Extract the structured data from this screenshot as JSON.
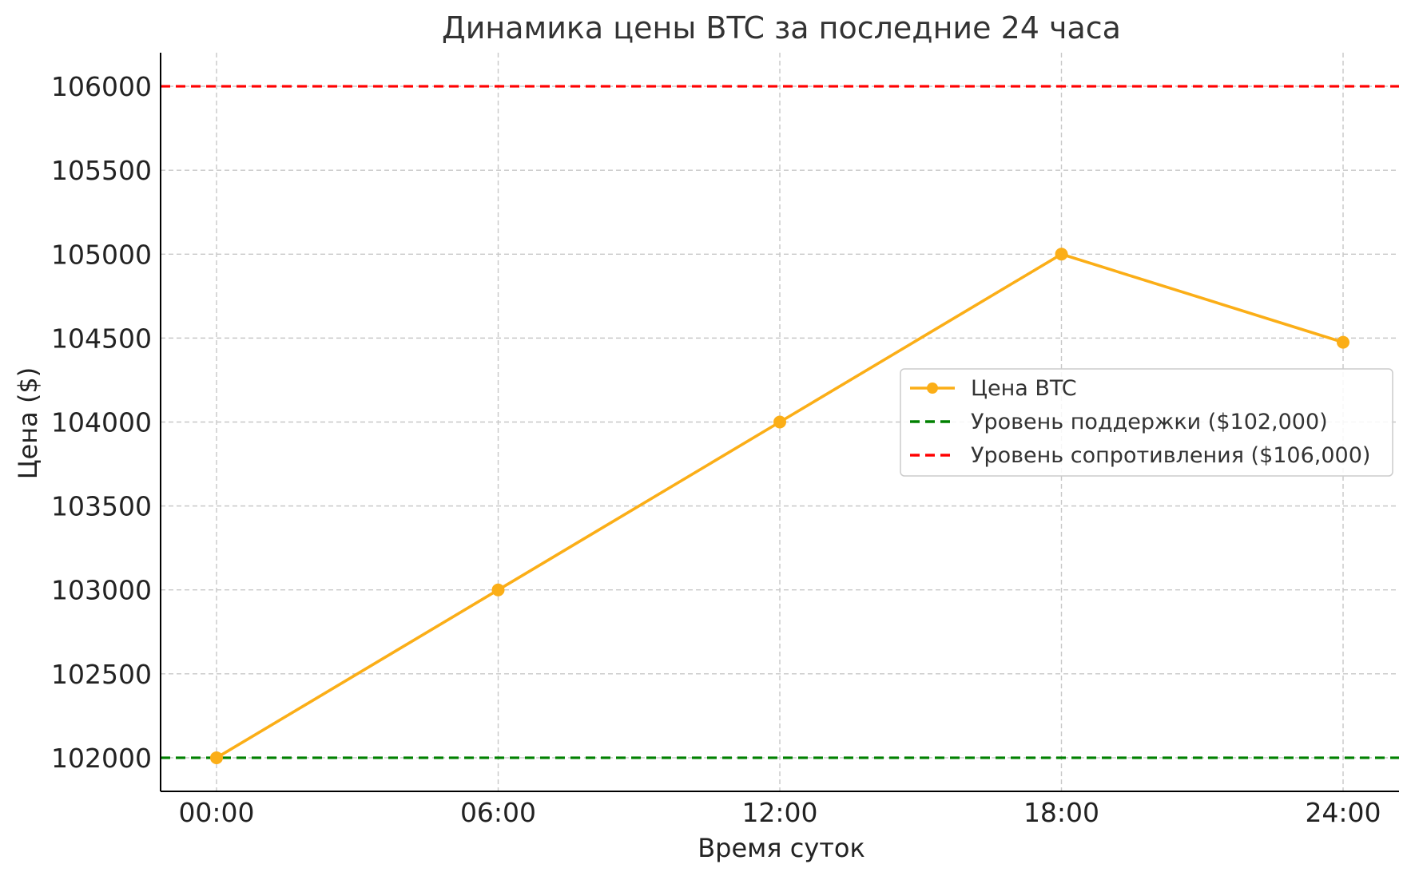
{
  "chart_data": {
    "type": "line",
    "title": "Динамика цены BTC за последние 24 часа",
    "xlabel": "Время суток",
    "ylabel": "Цена ($)",
    "categories": [
      "00:00",
      "06:00",
      "12:00",
      "18:00",
      "24:00"
    ],
    "ylim": [
      101800,
      106200
    ],
    "yticks": [
      102000,
      102500,
      103000,
      103500,
      104000,
      104500,
      105000,
      105500,
      106000
    ],
    "grid": true,
    "legend_position": "center-right",
    "series": [
      {
        "name": "Цена BTC",
        "values": [
          102000,
          103000,
          104000,
          105000,
          104475
        ],
        "color": "#FBAE17",
        "style": "solid",
        "marker": "circle"
      }
    ],
    "reference_lines": [
      {
        "name": "Уровень поддержки ($102,000)",
        "value": 102000,
        "color": "#008000",
        "style": "dashed"
      },
      {
        "name": "Уровень сопротивления ($106,000)",
        "value": 106000,
        "color": "#FF0000",
        "style": "dashed"
      }
    ]
  }
}
